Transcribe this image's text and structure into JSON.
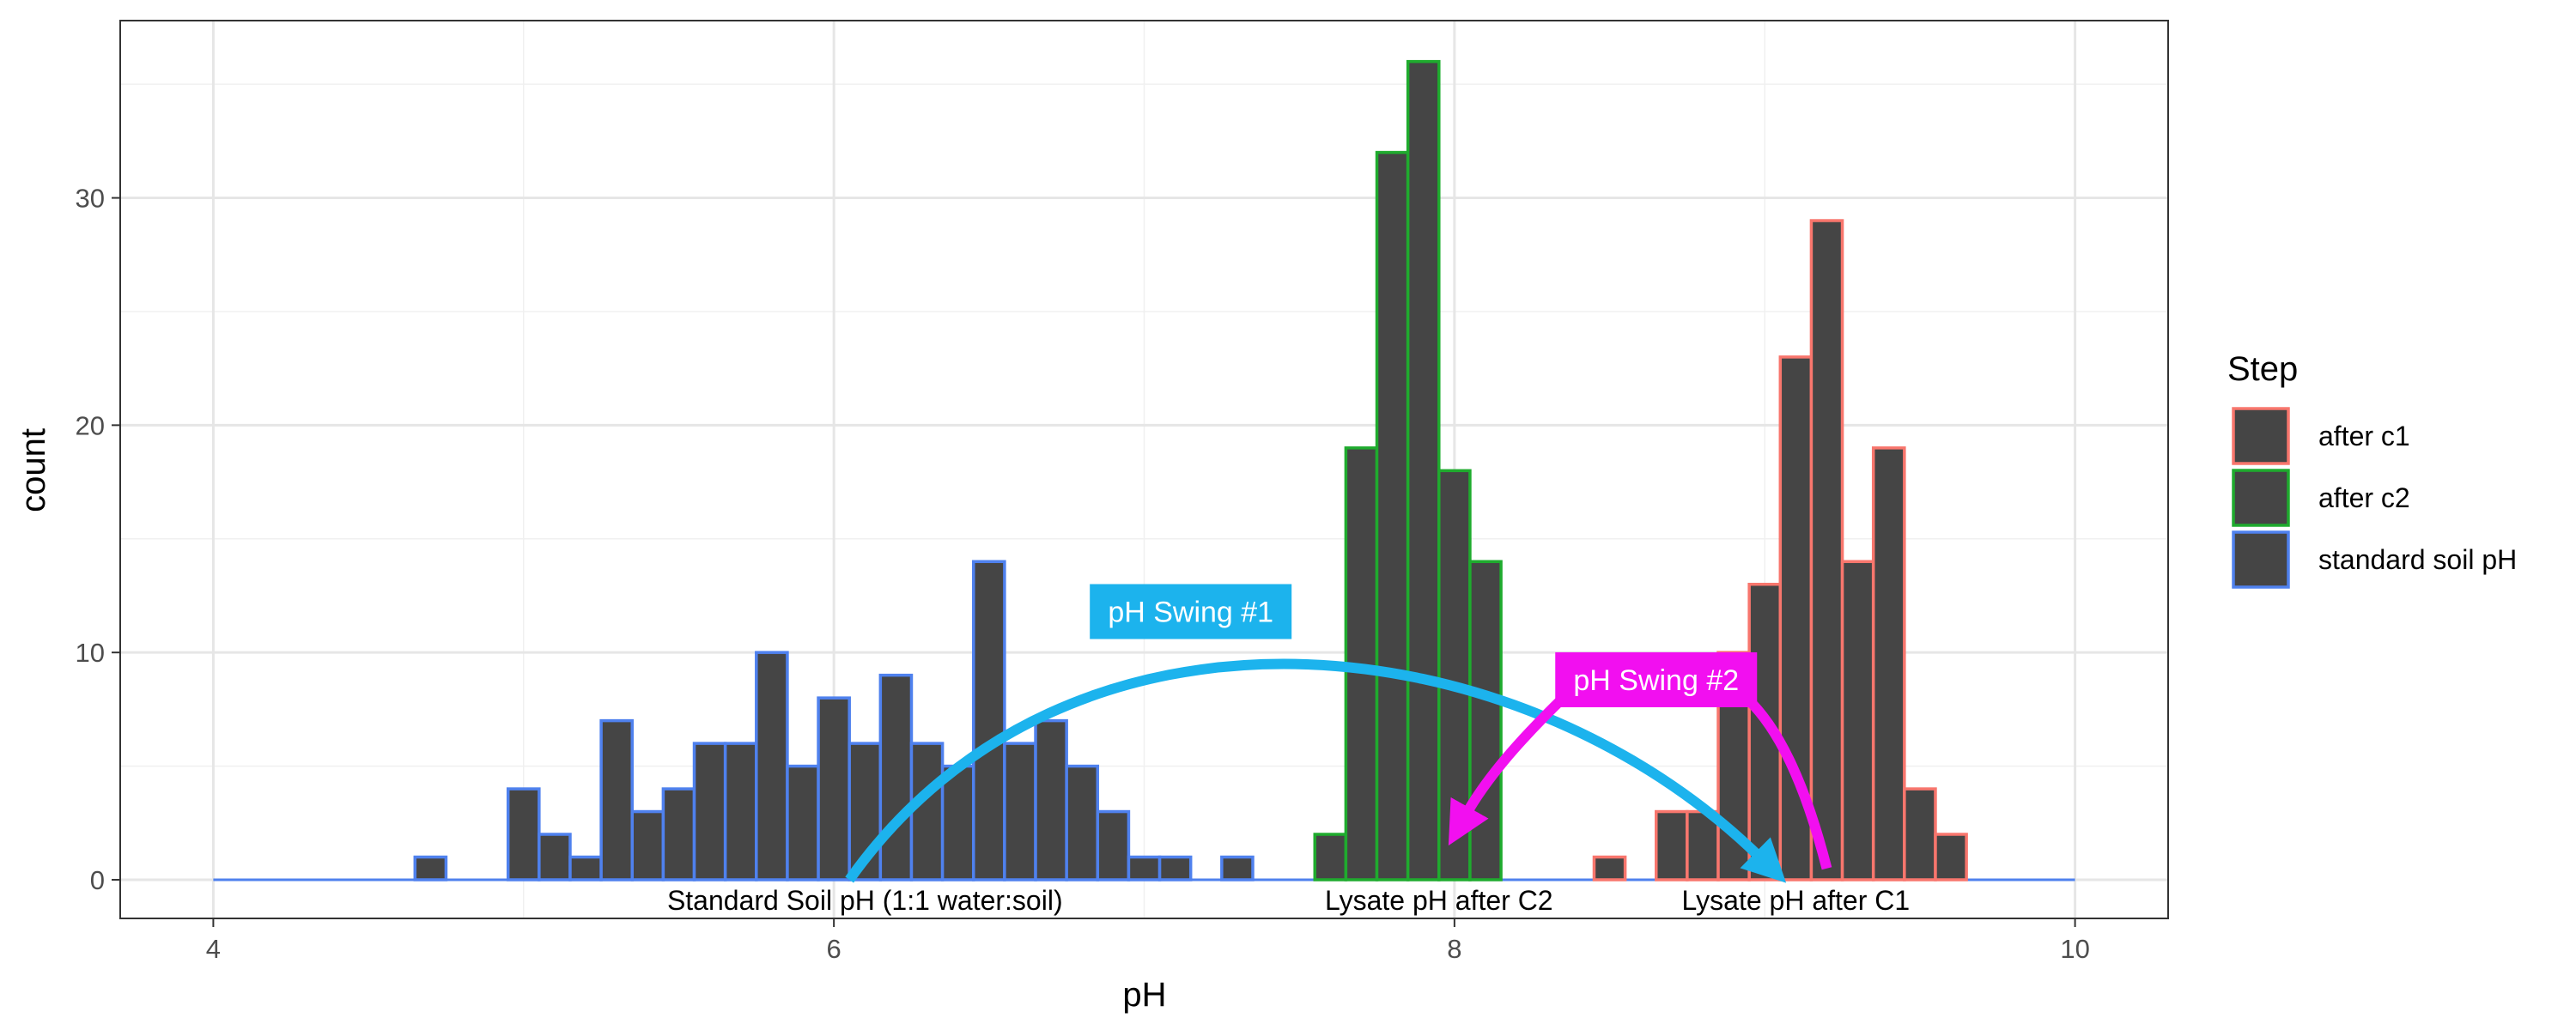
{
  "chart_data": {
    "type": "histogram",
    "xlabel": "pH",
    "ylabel": "count",
    "xlim": [
      3.7,
      10.3
    ],
    "ylim": [
      -1.7,
      37.8
    ],
    "xticks": [
      4,
      6,
      8,
      10
    ],
    "yticks": [
      0,
      10,
      20,
      30
    ],
    "bin_width": 0.1,
    "grid": true,
    "bar_fill": "#454545",
    "legend": {
      "title": "Step",
      "position": "right",
      "entries": [
        {
          "label": "after c1",
          "color": "#f8766d"
        },
        {
          "label": "after c2",
          "color": "#1fab2e"
        },
        {
          "label": "standard soil pH",
          "color": "#4f81ee"
        }
      ]
    },
    "series": [
      {
        "name": "after c1",
        "color": "#f8766d",
        "bins": [
          {
            "x": 8.7,
            "count": 3
          },
          {
            "x": 8.8,
            "count": 3
          },
          {
            "x": 8.9,
            "count": 10
          },
          {
            "x": 9.0,
            "count": 13
          },
          {
            "x": 9.1,
            "count": 23
          },
          {
            "x": 9.2,
            "count": 29
          },
          {
            "x": 9.3,
            "count": 14
          },
          {
            "x": 9.4,
            "count": 19
          },
          {
            "x": 9.5,
            "count": 4
          },
          {
            "x": 9.6,
            "count": 2
          },
          {
            "x": 8.5,
            "count": 1
          }
        ]
      },
      {
        "name": "after c2",
        "color": "#1fab2e",
        "bins": [
          {
            "x": 7.6,
            "count": 2
          },
          {
            "x": 7.7,
            "count": 19
          },
          {
            "x": 7.8,
            "count": 32
          },
          {
            "x": 7.9,
            "count": 36
          },
          {
            "x": 8.0,
            "count": 18
          },
          {
            "x": 8.1,
            "count": 14
          }
        ]
      },
      {
        "name": "standard soil pH",
        "color": "#4f81ee",
        "bins": [
          {
            "x": 4.7,
            "count": 1
          },
          {
            "x": 5.0,
            "count": 4
          },
          {
            "x": 5.1,
            "count": 2
          },
          {
            "x": 5.2,
            "count": 1
          },
          {
            "x": 5.3,
            "count": 7
          },
          {
            "x": 5.4,
            "count": 3
          },
          {
            "x": 5.5,
            "count": 4
          },
          {
            "x": 5.6,
            "count": 6
          },
          {
            "x": 5.7,
            "count": 6
          },
          {
            "x": 5.8,
            "count": 10
          },
          {
            "x": 5.9,
            "count": 5
          },
          {
            "x": 6.0,
            "count": 8
          },
          {
            "x": 6.1,
            "count": 6
          },
          {
            "x": 6.2,
            "count": 9
          },
          {
            "x": 6.3,
            "count": 6
          },
          {
            "x": 6.4,
            "count": 5
          },
          {
            "x": 6.5,
            "count": 14
          },
          {
            "x": 6.6,
            "count": 6
          },
          {
            "x": 6.7,
            "count": 7
          },
          {
            "x": 6.8,
            "count": 5
          },
          {
            "x": 6.9,
            "count": 3
          },
          {
            "x": 7.0,
            "count": 1
          },
          {
            "x": 7.1,
            "count": 1
          },
          {
            "x": 7.3,
            "count": 1
          }
        ]
      }
    ],
    "baseline_range": [
      4.0,
      10.0
    ],
    "annotations": [
      {
        "text": "Standard Soil pH (1:1 water:soil)",
        "x": 6.1,
        "y": -0.9
      },
      {
        "text": "Lysate pH after C2",
        "x": 7.95,
        "y": -0.9
      },
      {
        "text": "Lysate pH after C1",
        "x": 9.1,
        "y": -0.9
      }
    ],
    "swings": [
      {
        "label": "pH Swing #1",
        "color": "#1cb3ed",
        "from": [
          6.05,
          0
        ],
        "to": [
          9.1,
          0.4
        ],
        "label_at": [
          7.15,
          11.8
        ]
      },
      {
        "label": "pH Swing #2",
        "color": "#f20ff0",
        "from": [
          9.2,
          0.5
        ],
        "to": [
          7.98,
          2.0
        ],
        "label_at": [
          8.65,
          8.8
        ]
      }
    ]
  }
}
